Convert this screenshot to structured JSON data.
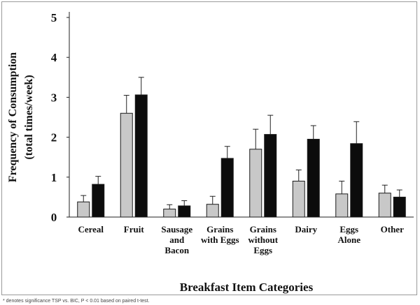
{
  "chart_data": {
    "type": "bar",
    "title": "",
    "xlabel": "Breakfast Item Categories",
    "ylabel": [
      "Frequency of Consumption",
      "(total times/week)"
    ],
    "ylim": [
      0,
      5
    ],
    "yticks": [
      0,
      1,
      2,
      3,
      4,
      5
    ],
    "grid": false,
    "legend": "none",
    "categories": [
      [
        "Cereal"
      ],
      [
        "Fruit"
      ],
      [
        "Sausage",
        "and",
        "Bacon"
      ],
      [
        "Grains",
        "with Eggs"
      ],
      [
        "Grains",
        "without",
        "Eggs"
      ],
      [
        "Dairy"
      ],
      [
        "Eggs",
        "Alone"
      ],
      [
        "Other"
      ]
    ],
    "series": [
      {
        "color": "#c8c8c8",
        "values": [
          0.38,
          2.6,
          0.2,
          0.32,
          1.7,
          0.9,
          0.58,
          0.6
        ],
        "errors": [
          0.16,
          0.45,
          0.11,
          0.2,
          0.5,
          0.28,
          0.32,
          0.2
        ]
      },
      {
        "color": "#0c0c0c",
        "values": [
          0.82,
          3.06,
          0.28,
          1.47,
          2.07,
          1.95,
          1.84,
          0.5
        ],
        "errors": [
          0.2,
          0.44,
          0.13,
          0.3,
          0.48,
          0.34,
          0.55,
          0.18
        ]
      }
    ]
  },
  "footnote": "* denotes significance TSP vs. BIC, P < 0.01 based on paired t-test."
}
